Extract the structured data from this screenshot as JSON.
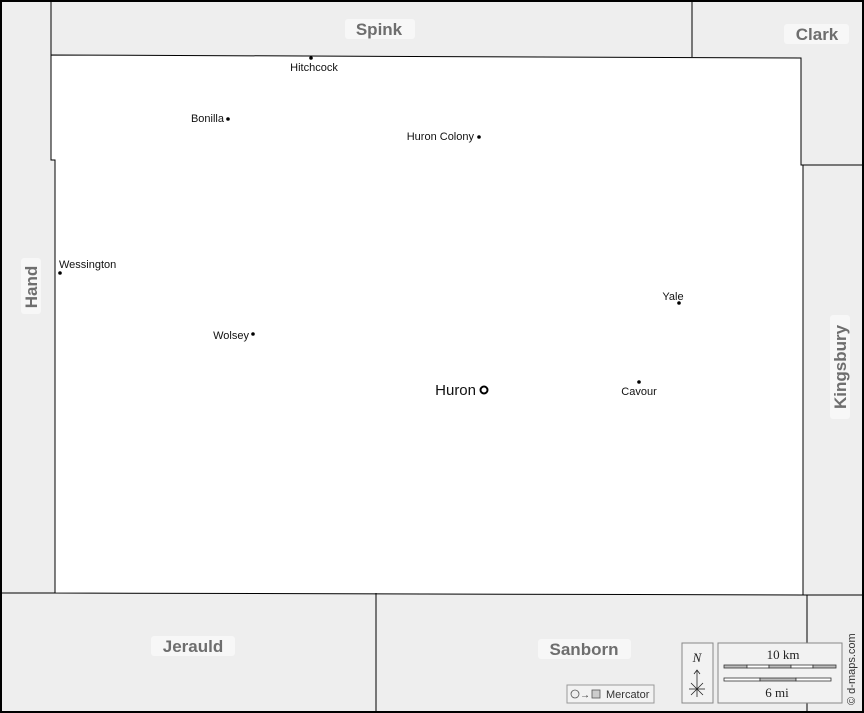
{
  "map": {
    "colors": {
      "outside": "#eeeeee",
      "county": "#ffffff",
      "border": "#000000",
      "label": "#6e6e6e"
    },
    "neighbors": {
      "north": "Spink",
      "northeast": "Clark",
      "west": "Hand",
      "east": "Kingsbury",
      "southwest": "Jerauld",
      "south": "Sanborn"
    },
    "county_seat": {
      "name": "Huron",
      "icon": "county-seat-circle-icon"
    },
    "towns": [
      "Hitchcock",
      "Bonilla",
      "Huron Colony",
      "Wessington",
      "Yale",
      "Wolsey",
      "Cavour"
    ],
    "north_arrow_label": "N",
    "scale": {
      "km": "10 km",
      "mi": "6 mi"
    },
    "projection": "Mercator",
    "credit": "© d-maps.com"
  }
}
